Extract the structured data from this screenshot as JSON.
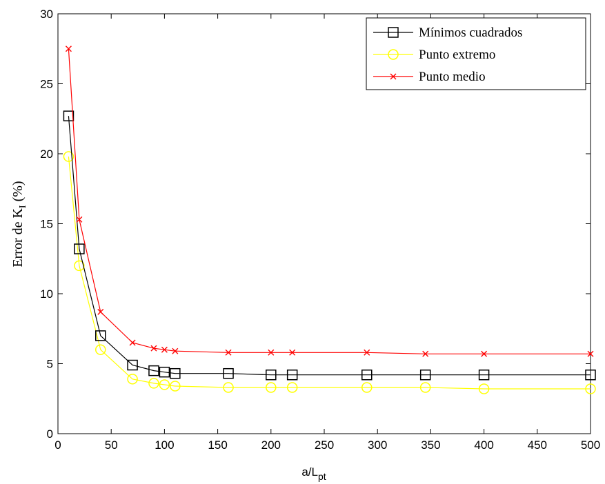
{
  "chart_data": {
    "type": "line",
    "xlabel_main": "a/L",
    "xlabel_sub": "pt",
    "ylabel_main": "Error de K",
    "ylabel_sub": "I",
    "ylabel_suffix": " (%)",
    "xlim": [
      0,
      500
    ],
    "ylim": [
      0,
      30
    ],
    "xticks": [
      0,
      50,
      100,
      150,
      200,
      250,
      300,
      350,
      400,
      450,
      500
    ],
    "yticks": [
      0,
      5,
      10,
      15,
      20,
      25,
      30
    ],
    "grid": false,
    "legend_position": "top-right",
    "series": [
      {
        "name": "Mínimos cuadrados",
        "color": "#000000",
        "marker": "square",
        "x": [
          10,
          20,
          40,
          70,
          90,
          100,
          110,
          160,
          200,
          220,
          290,
          345,
          400,
          500
        ],
        "y": [
          22.7,
          13.2,
          7.0,
          4.9,
          4.5,
          4.4,
          4.3,
          4.3,
          4.2,
          4.2,
          4.2,
          4.2,
          4.2,
          4.2
        ]
      },
      {
        "name": "Punto extremo",
        "color": "#ffff00",
        "marker": "circle",
        "x": [
          10,
          20,
          40,
          70,
          90,
          100,
          110,
          160,
          200,
          220,
          290,
          345,
          400,
          500
        ],
        "y": [
          19.8,
          12.0,
          6.0,
          3.9,
          3.6,
          3.5,
          3.4,
          3.3,
          3.3,
          3.3,
          3.3,
          3.3,
          3.2,
          3.2
        ]
      },
      {
        "name": "Punto medio",
        "color": "#ff0000",
        "marker": "x",
        "x": [
          10,
          20,
          40,
          70,
          90,
          100,
          110,
          160,
          200,
          220,
          290,
          345,
          400,
          500
        ],
        "y": [
          27.5,
          15.3,
          8.7,
          6.5,
          6.1,
          6.0,
          5.9,
          5.8,
          5.8,
          5.8,
          5.8,
          5.7,
          5.7,
          5.7
        ]
      }
    ]
  }
}
